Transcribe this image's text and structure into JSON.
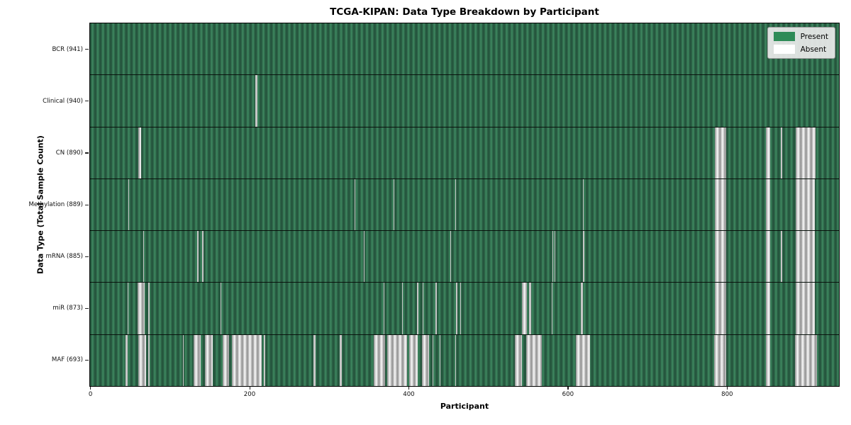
{
  "chart_data": {
    "type": "heatmap",
    "title": "TCGA-KIPAN: Data Type Breakdown by Participant",
    "xlabel": "Participant",
    "ylabel": "Data Type (Total Sample Count)",
    "n_participants": 941,
    "x_ticks": [
      0,
      200,
      400,
      600,
      800
    ],
    "grid": false,
    "legend_position": "upper right",
    "legend": [
      {
        "label": "Present",
        "color": "#2e8b57"
      },
      {
        "label": "Absent",
        "color": "#ffffff"
      }
    ],
    "rows": [
      {
        "label": "BCR (941)",
        "data_type": "BCR",
        "sample_count": 941,
        "absent_ranges": []
      },
      {
        "label": "Clinical (940)",
        "data_type": "Clinical",
        "sample_count": 940,
        "absent_ranges": [
          [
            208,
            210
          ]
        ]
      },
      {
        "label": "CN (890)",
        "data_type": "CN",
        "sample_count": 890,
        "absent_ranges": [
          [
            61,
            64
          ],
          [
            785,
            799
          ],
          [
            849,
            855
          ],
          [
            868,
            870
          ],
          [
            887,
            912
          ]
        ]
      },
      {
        "label": "Methylation (889)",
        "data_type": "Methylation",
        "sample_count": 889,
        "absent_ranges": [
          [
            48,
            49
          ],
          [
            332,
            333
          ],
          [
            381,
            382
          ],
          [
            459,
            460
          ],
          [
            619,
            620
          ],
          [
            785,
            799
          ],
          [
            849,
            855
          ],
          [
            887,
            911
          ]
        ]
      },
      {
        "label": "mRNA (885)",
        "data_type": "mRNA",
        "sample_count": 885,
        "absent_ranges": [
          [
            67,
            68
          ],
          [
            135,
            136
          ],
          [
            141,
            143
          ],
          [
            344,
            345
          ],
          [
            453,
            454
          ],
          [
            581,
            582
          ],
          [
            584,
            585
          ],
          [
            619,
            621
          ],
          [
            785,
            799
          ],
          [
            849,
            855
          ],
          [
            868,
            870
          ],
          [
            887,
            911
          ]
        ]
      },
      {
        "label": "miR (873)",
        "data_type": "miR",
        "sample_count": 873,
        "absent_ranges": [
          [
            47,
            48
          ],
          [
            60,
            69
          ],
          [
            73,
            75
          ],
          [
            164,
            165
          ],
          [
            369,
            370
          ],
          [
            392,
            393
          ],
          [
            411,
            413
          ],
          [
            418,
            419
          ],
          [
            434,
            436
          ],
          [
            460,
            462
          ],
          [
            465,
            466
          ],
          [
            543,
            549
          ],
          [
            552,
            554
          ],
          [
            580,
            581
          ],
          [
            617,
            619
          ],
          [
            785,
            799
          ],
          [
            849,
            855
          ],
          [
            887,
            911
          ]
        ]
      },
      {
        "label": "MAF (693)",
        "data_type": "MAF",
        "sample_count": 693,
        "absent_ranges": [
          [
            45,
            47
          ],
          [
            61,
            70
          ],
          [
            73,
            75
          ],
          [
            117,
            118
          ],
          [
            130,
            139
          ],
          [
            144,
            154
          ],
          [
            167,
            175
          ],
          [
            178,
            216
          ],
          [
            218,
            220
          ],
          [
            281,
            283
          ],
          [
            314,
            316
          ],
          [
            356,
            371
          ],
          [
            373,
            398
          ],
          [
            401,
            412
          ],
          [
            417,
            426
          ],
          [
            430,
            431
          ],
          [
            439,
            440
          ],
          [
            459,
            460
          ],
          [
            534,
            543
          ],
          [
            548,
            568
          ],
          [
            610,
            628
          ],
          [
            784,
            799
          ],
          [
            849,
            855
          ],
          [
            886,
            913
          ]
        ]
      }
    ]
  }
}
